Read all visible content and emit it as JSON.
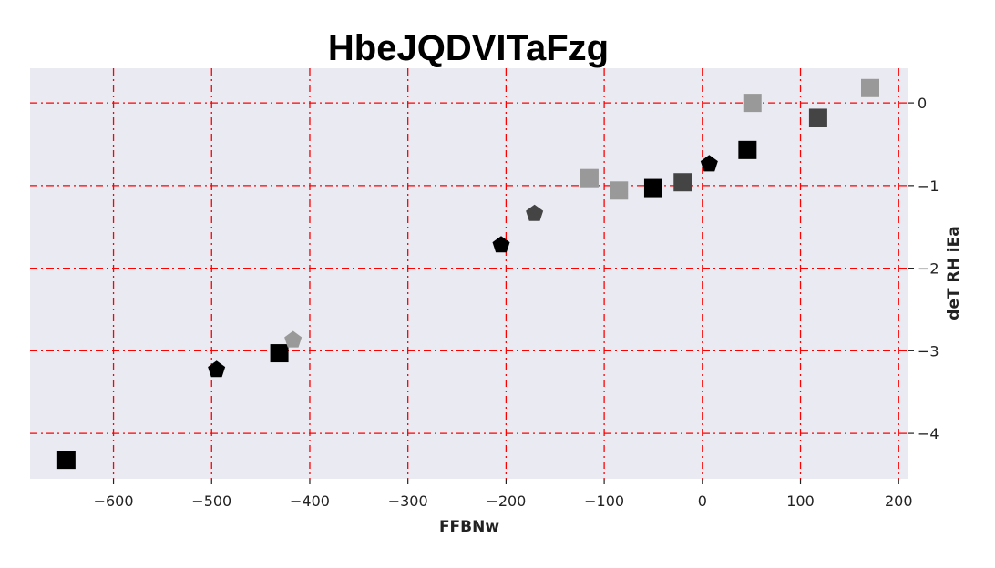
{
  "chart_data": {
    "type": "scatter",
    "title": "HbeJQDVITaFzg",
    "xlabel": "FFBNw",
    "ylabel": "deT RH  iEa",
    "xlim": [
      -685,
      210
    ],
    "ylim": [
      -4.55,
      0.42
    ],
    "xticks": [
      -600,
      -500,
      -400,
      -300,
      -200,
      -100,
      0,
      100,
      200
    ],
    "yticks": [
      0,
      -1,
      -2,
      -3,
      -4
    ],
    "grid": true,
    "grid_style": "dash-dot",
    "y_axis_position": "right",
    "colors": {
      "plot_bg": "#eaeaf2",
      "grid": "#ff0000",
      "black": "#000000",
      "dark_gray": "#444444",
      "light_gray": "#999999"
    },
    "points": [
      {
        "x": -648,
        "y": -4.32,
        "marker": "square",
        "color": "black"
      },
      {
        "x": -495,
        "y": -3.23,
        "marker": "pentagon",
        "color": "black"
      },
      {
        "x": -431,
        "y": -3.03,
        "marker": "square",
        "color": "black"
      },
      {
        "x": -417,
        "y": -2.87,
        "marker": "pentagon",
        "color": "light_gray"
      },
      {
        "x": -205,
        "y": -1.72,
        "marker": "pentagon",
        "color": "black"
      },
      {
        "x": -171,
        "y": -1.34,
        "marker": "pentagon",
        "color": "dark_gray"
      },
      {
        "x": -115,
        "y": -0.91,
        "marker": "square",
        "color": "light_gray"
      },
      {
        "x": -85,
        "y": -1.06,
        "marker": "square",
        "color": "light_gray"
      },
      {
        "x": -50,
        "y": -1.03,
        "marker": "square",
        "color": "black"
      },
      {
        "x": -20,
        "y": -0.96,
        "marker": "square",
        "color": "dark_gray"
      },
      {
        "x": 7,
        "y": -0.74,
        "marker": "pentagon",
        "color": "black"
      },
      {
        "x": 46,
        "y": -0.57,
        "marker": "square",
        "color": "black"
      },
      {
        "x": 51,
        "y": 0.0,
        "marker": "square",
        "color": "light_gray"
      },
      {
        "x": 118,
        "y": -0.18,
        "marker": "square",
        "color": "dark_gray"
      },
      {
        "x": 171,
        "y": 0.18,
        "marker": "square",
        "color": "light_gray"
      }
    ]
  }
}
